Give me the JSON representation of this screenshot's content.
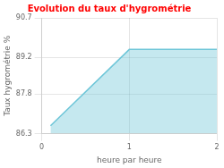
{
  "chart_data": {
    "type": "line",
    "title": "Evolution du taux d'hygrométrie",
    "xlabel": "heure par heure",
    "ylabel": "Taux hygrométrie %",
    "x": [
      0.1,
      1.0,
      2.0
    ],
    "values": [
      86.6,
      89.5,
      89.5
    ],
    "color": "#6ec6d8",
    "xlim": [
      0,
      2
    ],
    "xticks": [
      0,
      1,
      2
    ],
    "ylim": [
      86.3,
      90.7
    ],
    "yticks": [
      86.3,
      87.8,
      89.2,
      90.7
    ],
    "grid": true
  }
}
